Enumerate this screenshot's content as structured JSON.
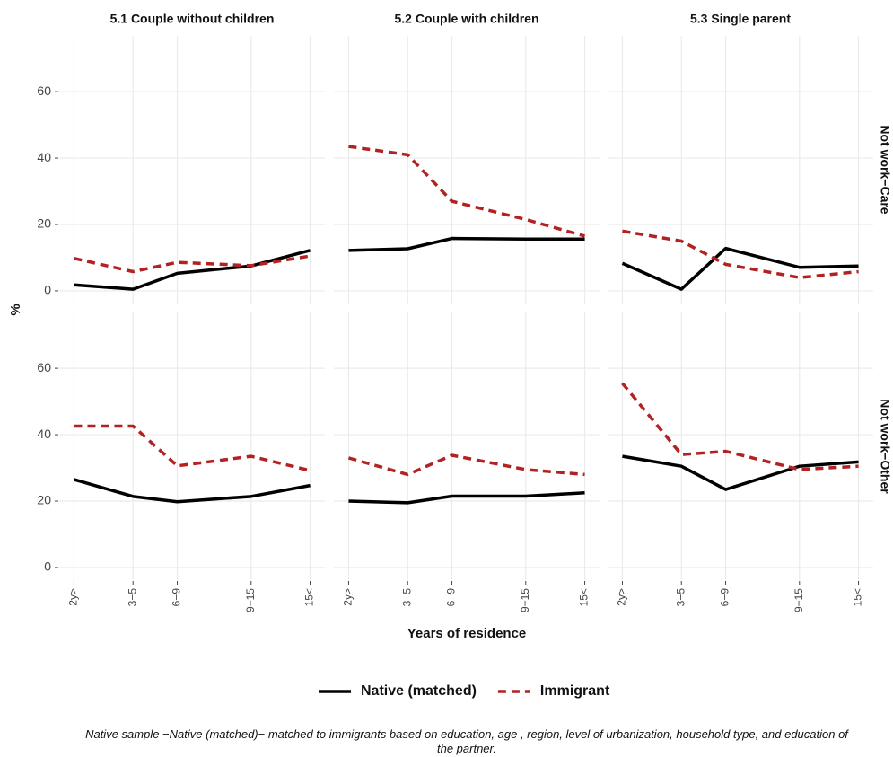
{
  "chart_data": {
    "type": "line",
    "facet_columns": [
      "5.1 Couple without children",
      "5.2 Couple with children",
      "5.3 Single parent"
    ],
    "facet_rows": [
      "Not work−Care",
      "Not work−Other"
    ],
    "x": [
      1,
      5,
      8,
      13,
      17
    ],
    "xticks": [
      {
        "value": 1,
        "label": "2y>"
      },
      {
        "value": 5,
        "label": "3−5"
      },
      {
        "value": 8,
        "label": "6−9"
      },
      {
        "value": 13,
        "label": "9−15"
      },
      {
        "value": 17,
        "label": "15<"
      }
    ],
    "xlim": [
      0,
      18
    ],
    "ylim": [
      -3.8,
      76.8
    ],
    "yticks": [
      0,
      20,
      40,
      60
    ],
    "grid": true,
    "x_label": "Years of residence",
    "y_label": "%",
    "series": [
      {
        "name": "Native (matched)",
        "color": "#000000",
        "dash": false
      },
      {
        "name": "Immigrant",
        "color": "#b22222",
        "dash": true
      }
    ],
    "panels": [
      {
        "values": [
          [
            1.8,
            0.5,
            5.3,
            7.5,
            12.2
          ],
          [
            9.8,
            5.8,
            8.6,
            7.6,
            10.5
          ]
        ]
      },
      {
        "values": [
          [
            12.2,
            12.7,
            15.8,
            15.6,
            15.6
          ],
          [
            43.5,
            41,
            27,
            21.5,
            16.5
          ]
        ]
      },
      {
        "values": [
          [
            8.3,
            0.5,
            12.8,
            7.1,
            7.5
          ],
          [
            18,
            15,
            8,
            4,
            5.8
          ]
        ]
      },
      {
        "values": [
          [
            26.5,
            21.4,
            19.8,
            21.4,
            24.7
          ],
          [
            42.6,
            42.6,
            30.6,
            33.5,
            29.2
          ]
        ]
      },
      {
        "values": [
          [
            20,
            19.5,
            21.5,
            21.5,
            22.5
          ],
          [
            33,
            28,
            33.8,
            29.5,
            28
          ]
        ]
      },
      {
        "values": [
          [
            33.5,
            30.5,
            23.5,
            30.5,
            31.8
          ],
          [
            55.5,
            34,
            35,
            29.5,
            30.5
          ]
        ]
      }
    ],
    "caption": "Native sample −Native (matched)− matched to immigrants based on education, age , region, level of urbanization, household type, and education of the partner."
  }
}
